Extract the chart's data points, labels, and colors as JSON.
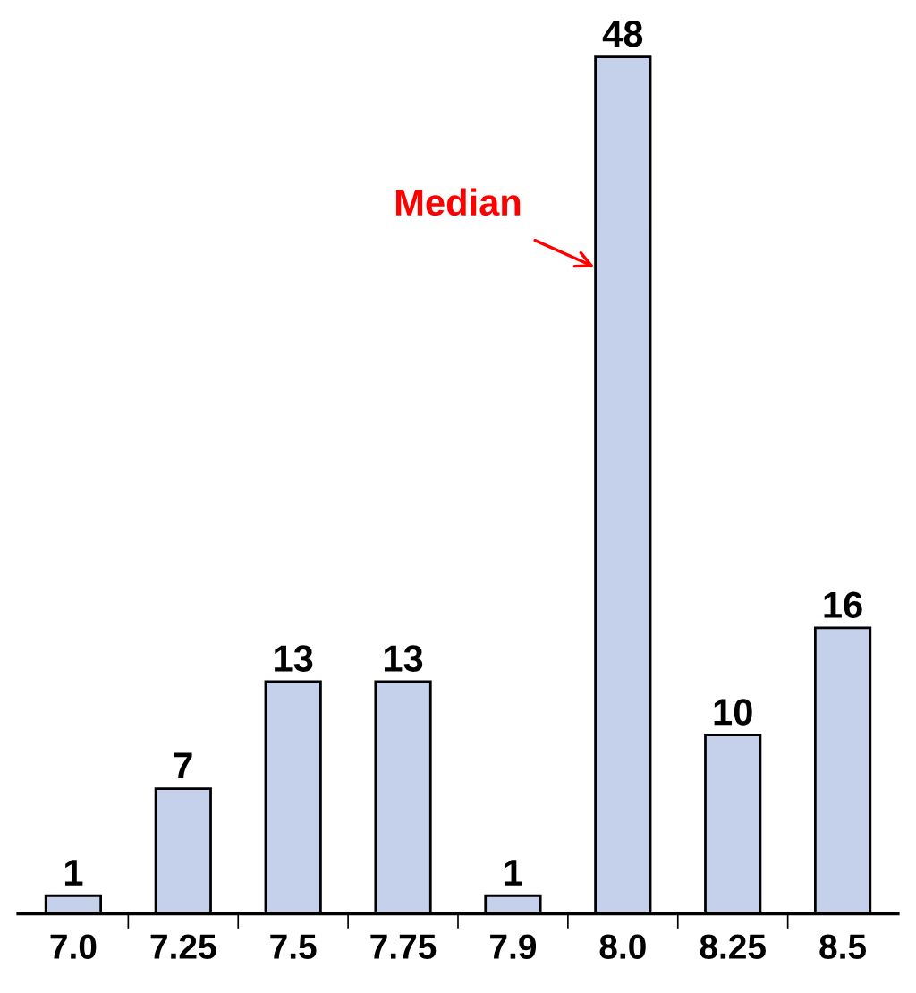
{
  "chart_data": {
    "type": "bar",
    "categories": [
      "7.0",
      "7.25",
      "7.5",
      "7.75",
      "7.9",
      "8.0",
      "8.25",
      "8.5"
    ],
    "values": [
      1,
      7,
      13,
      13,
      1,
      48,
      10,
      16
    ],
    "color": "#c5d0ea",
    "data_labels": true,
    "annotations": [
      "Median"
    ],
    "grid": false,
    "legend": false
  }
}
